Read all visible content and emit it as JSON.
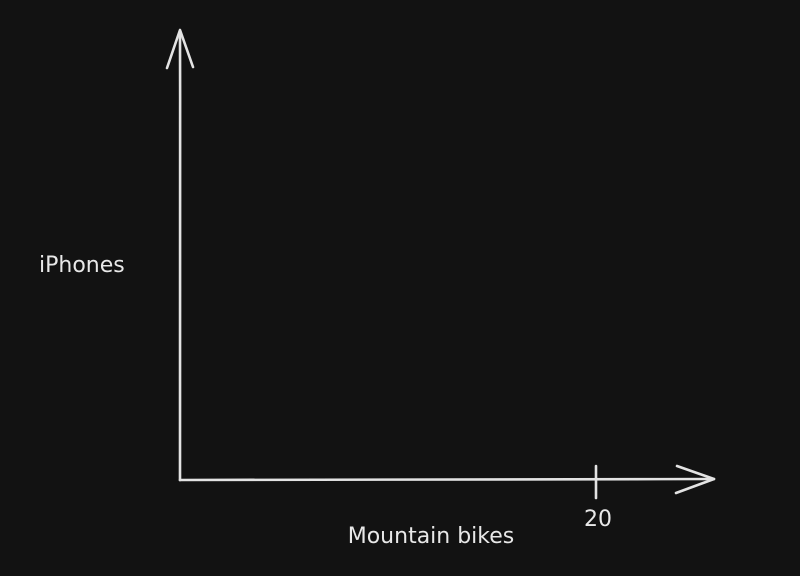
{
  "chart_data": {
    "type": "scatter",
    "xlabel": "Mountain bikes",
    "ylabel": "iPhones",
    "x_ticks": [
      "20"
    ],
    "series": []
  },
  "colors": {
    "background": "#121212",
    "foreground": "#e3e3e3"
  }
}
